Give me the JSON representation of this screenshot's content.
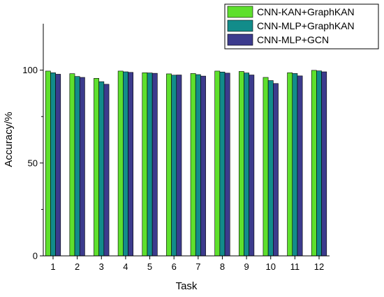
{
  "chart_data": {
    "type": "bar",
    "xlabel": "Task",
    "ylabel": "Accuracy/%",
    "ylim": [
      0,
      125
    ],
    "yticks": [
      0,
      50,
      100
    ],
    "grid": false,
    "legend_position": "top-right",
    "categories": [
      "1",
      "2",
      "3",
      "4",
      "5",
      "6",
      "7",
      "8",
      "9",
      "10",
      "11",
      "12"
    ],
    "series": [
      {
        "name": "CNN-KAN+GraphKAN",
        "color": "#5ee02d",
        "values": [
          99.5,
          98.1,
          95.6,
          99.5,
          98.6,
          98.0,
          98.2,
          99.5,
          99.3,
          96.1,
          98.6,
          99.9
        ]
      },
      {
        "name": "CNN-MLP+GraphKAN",
        "color": "#128c8a",
        "values": [
          98.6,
          96.6,
          93.8,
          99.1,
          98.5,
          97.3,
          97.6,
          99.0,
          98.5,
          94.4,
          98.2,
          99.6
        ]
      },
      {
        "name": "CNN-MLP+GCN",
        "color": "#3c3b8d",
        "values": [
          97.8,
          96.1,
          92.4,
          98.8,
          98.3,
          97.4,
          96.8,
          98.4,
          97.4,
          92.8,
          96.9,
          99.1
        ]
      }
    ]
  }
}
